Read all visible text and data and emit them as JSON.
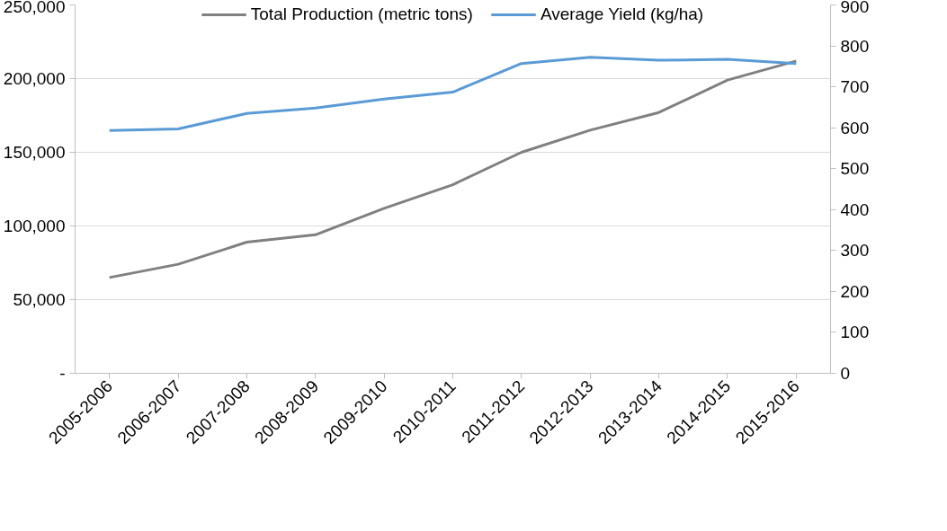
{
  "chart_data": {
    "type": "line",
    "categories": [
      "2005-2006",
      "2006-2007",
      "2007-2008",
      "2008-2009",
      "2009-2010",
      "2010-2011",
      "2011-2012",
      "2012-2013",
      "2013-2014",
      "2014-2015",
      "2015-2016"
    ],
    "series": [
      {
        "name": "Total Production (metric tons)",
        "color": "#808080",
        "values": [
          65000,
          74000,
          89000,
          94000,
          112000,
          128000,
          150000,
          165000,
          177000,
          199000,
          212000
        ]
      },
      {
        "name": "Average Yield (kg/ha)",
        "color": "#5b9bd5",
        "axis": "y2",
        "values": [
          593,
          597,
          635,
          648,
          670,
          687,
          757,
          772,
          765,
          767,
          757
        ]
      }
    ],
    "ylim": [
      0,
      250000
    ],
    "yticks": [
      {
        "value": 0,
        "label": "-"
      },
      {
        "value": 50000,
        "label": "50,000"
      },
      {
        "value": 100000,
        "label": "100,000"
      },
      {
        "value": 150000,
        "label": "150,000"
      },
      {
        "value": 200000,
        "label": "200,000"
      },
      {
        "value": 250000,
        "label": "250,000"
      }
    ],
    "y2lim": [
      0,
      900
    ],
    "y2ticks": [
      0,
      100,
      200,
      300,
      400,
      500,
      600,
      700,
      800,
      900
    ],
    "grid": "y",
    "legend": "top",
    "marker": "none",
    "line_style": "solid"
  }
}
